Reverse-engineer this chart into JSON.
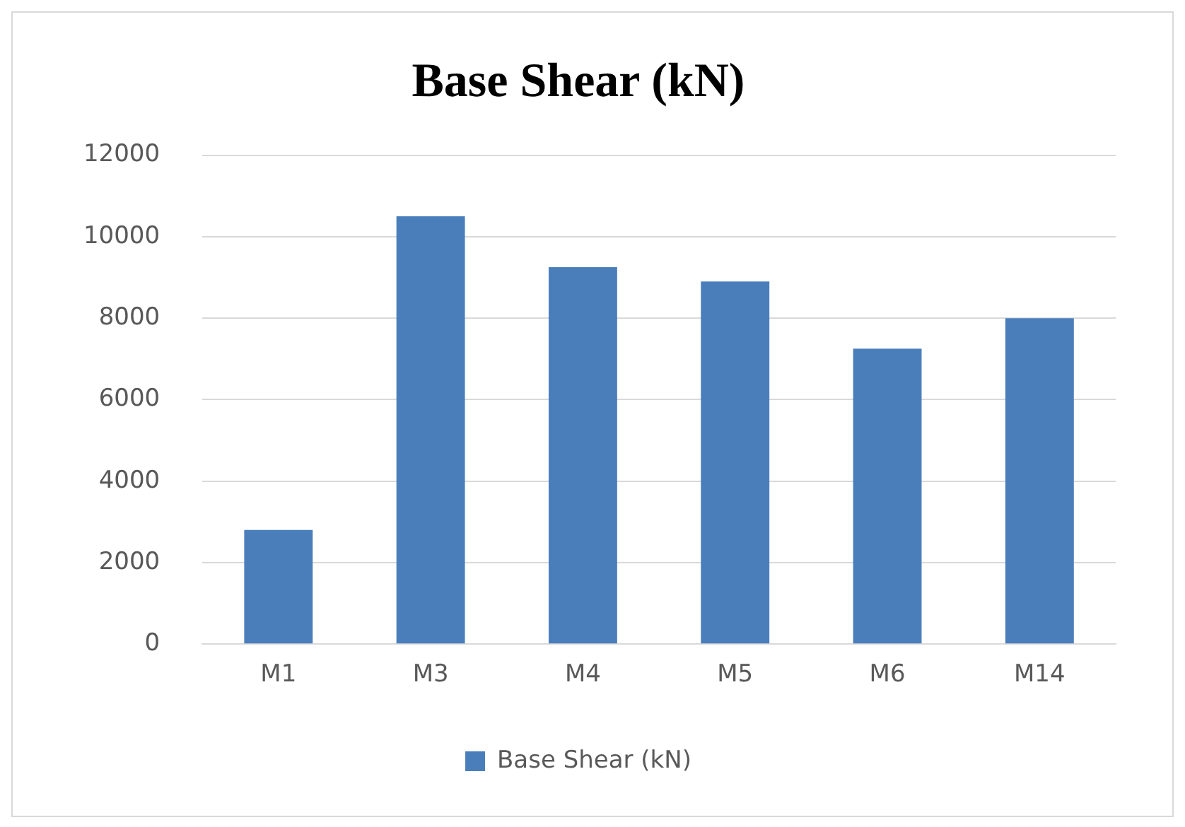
{
  "chart_data": {
    "type": "bar",
    "title": "Base Shear (kN)",
    "categories": [
      "M1",
      "M3",
      "M4",
      "M5",
      "M6",
      "M14"
    ],
    "series": [
      {
        "name": "Base Shear (kN)",
        "color": "#4a7ebb",
        "values": [
          2800,
          10500,
          9250,
          8900,
          7250,
          8000
        ]
      }
    ],
    "ylim": [
      0,
      12000
    ],
    "yticks": [
      0,
      2000,
      4000,
      6000,
      8000,
      10000,
      12000
    ],
    "grid": "y",
    "legend": "bottom"
  }
}
